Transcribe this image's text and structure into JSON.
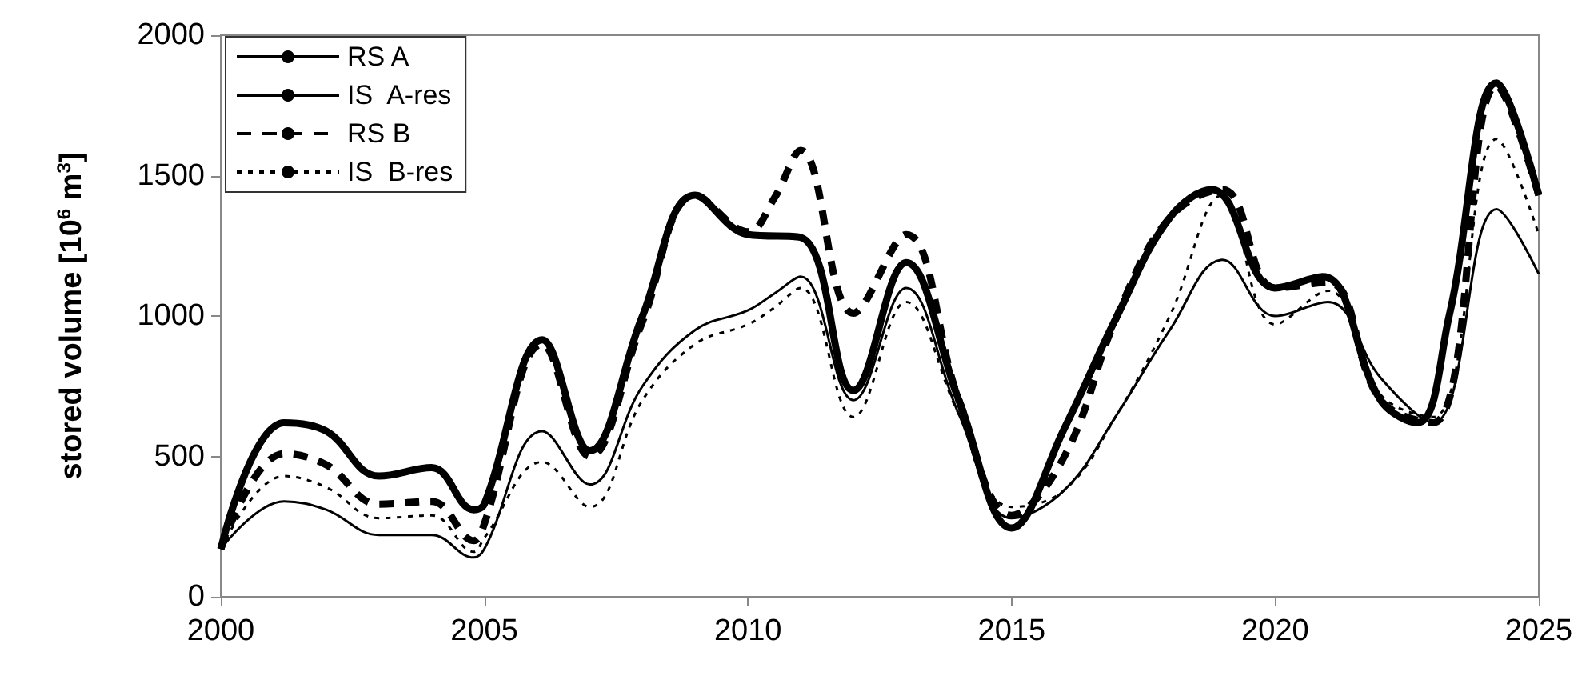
{
  "chart_data": {
    "type": "line",
    "ylabel": "stored volume [10$^{6}$ m$^{3}$]",
    "xlim": [
      2000,
      2025
    ],
    "xticks": [
      2000,
      2005,
      2010,
      2015,
      2020,
      2025
    ],
    "ylim": [
      0,
      2000
    ],
    "yticks": [
      0,
      500,
      1000,
      1500,
      2000
    ],
    "grid": false,
    "legend": "top left",
    "marker": "none",
    "series": [
      {
        "name": "RS A",
        "color": "#000000",
        "line_style": "solid",
        "x": [
          2000,
          2001.2,
          2002,
          2003,
          2004,
          2004.8,
          2005,
          2006.1,
          2007,
          2008,
          2009,
          2010,
          2011,
          2012,
          2013,
          2014,
          2015,
          2016,
          2017,
          2018,
          2018.8,
          2020,
          2020.9,
          2022,
          2022.7,
          2023.3,
          2024.2,
          2025
        ],
        "values": [
          170,
          620,
          590,
          430,
          460,
          310,
          330,
          915,
          520,
          1000,
          1430,
          1290,
          1280,
          735,
          1190,
          700,
          245,
          600,
          1000,
          1350,
          1450,
          1100,
          1140,
          700,
          620,
          1000,
          1830,
          1430
        ]
      },
      {
        "name": "IS  A-res",
        "color": "#000000",
        "line_style": "solid",
        "x": [
          2000,
          2001.2,
          2002,
          2003,
          2004,
          2004.8,
          2005,
          2006.1,
          2007,
          2008,
          2009,
          2010,
          2010.5,
          2011,
          2012,
          2013,
          2014,
          2015,
          2016,
          2017,
          2018,
          2019,
          2020,
          2021,
          2022,
          2023,
          2024.2,
          2025
        ],
        "values": [
          170,
          340,
          310,
          220,
          220,
          140,
          170,
          590,
          400,
          750,
          950,
          1020,
          1080,
          1140,
          700,
          1100,
          650,
          280,
          380,
          650,
          950,
          1200,
          1000,
          1050,
          780,
          620,
          1380,
          1150
        ]
      },
      {
        "name": "RS B",
        "color": "#000000",
        "line_style": "dashed",
        "x": [
          2000,
          2001.2,
          2002,
          2003,
          2004,
          2004.8,
          2005,
          2006.1,
          2007,
          2008,
          2009,
          2010,
          2010.5,
          2011,
          2012,
          2013,
          2014,
          2015,
          2016,
          2017,
          2018,
          2019,
          2020,
          2021,
          2022,
          2023,
          2024.2,
          2025
        ],
        "values": [
          170,
          510,
          470,
          330,
          340,
          200,
          260,
          900,
          500,
          980,
          1430,
          1300,
          1420,
          1590,
          1010,
          1290,
          700,
          290,
          500,
          1000,
          1350,
          1450,
          1100,
          1120,
          700,
          620,
          1820,
          1430
        ]
      },
      {
        "name": "IS  B-res",
        "color": "#000000",
        "line_style": "dotted",
        "x": [
          2000,
          2001.2,
          2002,
          2003,
          2004,
          2004.8,
          2005,
          2006.1,
          2007,
          2008,
          2009,
          2010,
          2010.5,
          2011,
          2012,
          2013,
          2014,
          2015,
          2016,
          2017,
          2018,
          2019,
          2020,
          2021,
          2022,
          2023,
          2024.2,
          2025
        ],
        "values": [
          170,
          430,
          390,
          280,
          290,
          160,
          210,
          480,
          320,
          700,
          900,
          970,
          1030,
          1100,
          640,
          1050,
          650,
          320,
          380,
          650,
          1000,
          1430,
          970,
          1090,
          720,
          640,
          1630,
          1290
        ]
      }
    ]
  }
}
